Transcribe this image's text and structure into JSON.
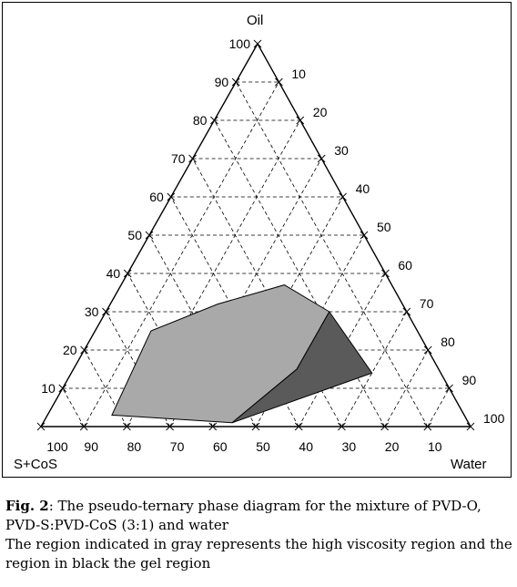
{
  "figure": {
    "caption": {
      "label": "Fig. 2",
      "title": ": The pseudo-ternary phase diagram for the mixture of PVD-O, PVD-S:PVD-CoS (3:1) and water",
      "note": "The region indicated in gray represents the high viscosity region and the region in black the gel region"
    }
  },
  "chart_data": {
    "type": "ternary",
    "vertices": {
      "top": "Oil",
      "bottom_left": "S+CoS",
      "bottom_right": "Water"
    },
    "ticks": {
      "oil": [
        "10",
        "20",
        "30",
        "40",
        "50",
        "60",
        "70",
        "80",
        "90",
        "100"
      ],
      "water": [
        "10",
        "20",
        "30",
        "40",
        "50",
        "60",
        "70",
        "80",
        "90",
        "100"
      ],
      "s_cos": [
        "100",
        "90",
        "80",
        "70",
        "60",
        "50",
        "40",
        "30",
        "20",
        "10"
      ]
    },
    "grid": true,
    "regions": [
      {
        "fill": "#a9a9a9",
        "points": [
          {
            "oil": 3,
            "water": 15
          },
          {
            "oil": 25,
            "water": 13
          },
          {
            "oil": 32,
            "water": 25
          },
          {
            "oil": 37,
            "water": 38
          },
          {
            "oil": 30,
            "water": 52
          },
          {
            "oil": 15,
            "water": 52
          },
          {
            "oil": 1,
            "water": 44
          }
        ]
      },
      {
        "fill": "#5a5a5a",
        "points": [
          {
            "oil": 30,
            "water": 52
          },
          {
            "oil": 15,
            "water": 52
          },
          {
            "oil": 1,
            "water": 44
          },
          {
            "oil": 14,
            "water": 70
          }
        ]
      }
    ]
  },
  "colors": {
    "high_viscosity": "#a9a9a9",
    "gel": "#5a5a5a",
    "grid": "#000000"
  }
}
